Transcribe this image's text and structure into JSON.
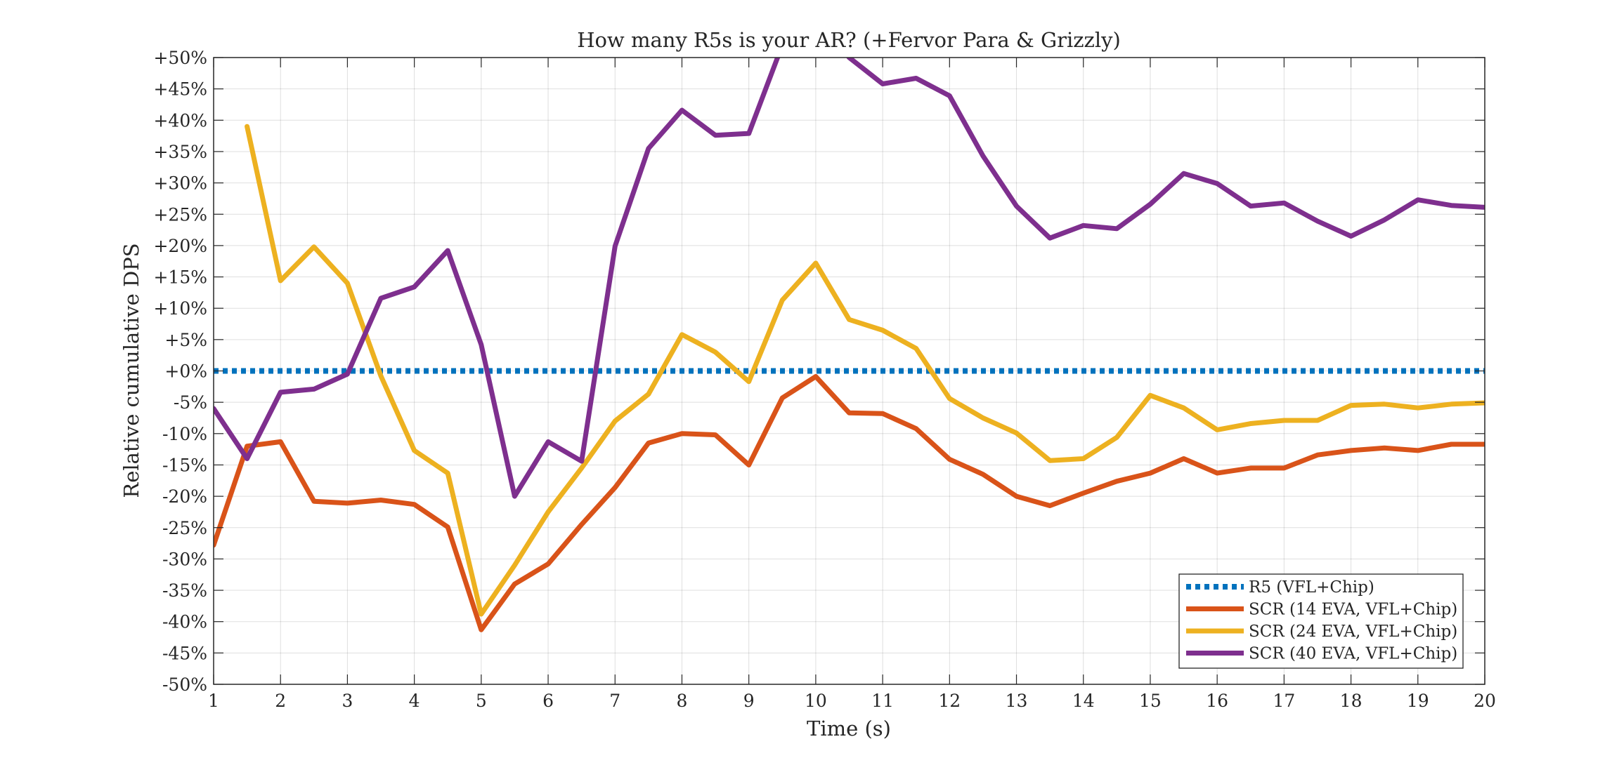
{
  "chart_data": {
    "type": "line",
    "title": "How many R5s is your AR? (+Fervor Para & Grizzly)",
    "xlabel": "Time (s)",
    "ylabel": "Relative cumulative DPS",
    "xlim": [
      1,
      20
    ],
    "ylim": [
      -50,
      50
    ],
    "x_ticks": [
      "1",
      "2",
      "3",
      "4",
      "5",
      "6",
      "7",
      "8",
      "9",
      "10",
      "11",
      "12",
      "13",
      "14",
      "15",
      "16",
      "17",
      "18",
      "19",
      "20"
    ],
    "y_ticks": [
      "+50%",
      "+45%",
      "+40%",
      "+35%",
      "+30%",
      "+25%",
      "+20%",
      "+15%",
      "+10%",
      "+5%",
      "+0%",
      "-5%",
      "-10%",
      "-15%",
      "-20%",
      "-25%",
      "-30%",
      "-35%",
      "-40%",
      "-45%",
      "-50%"
    ],
    "grid": true,
    "legend_position": "bottom-right",
    "x": [
      1,
      1.5,
      2,
      2.5,
      3,
      3.5,
      4,
      4.5,
      5,
      5.5,
      6,
      6.5,
      7,
      7.5,
      8,
      8.5,
      9,
      9.5,
      10,
      10.5,
      11,
      11.5,
      12,
      12.5,
      13,
      13.5,
      14,
      14.5,
      15,
      15.5,
      16,
      16.5,
      17,
      17.5,
      18,
      18.5,
      19,
      19.5,
      20
    ],
    "series": [
      {
        "name": "R5 (VFL+Chip)",
        "color": "#0072BD",
        "style": "dotted",
        "values": [
          0,
          0,
          0,
          0,
          0,
          0,
          0,
          0,
          0,
          0,
          0,
          0,
          0,
          0,
          0,
          0,
          0,
          0,
          0,
          0,
          0,
          0,
          0,
          0,
          0,
          0,
          0,
          0,
          0,
          0,
          0,
          0,
          0,
          0,
          0,
          0,
          0,
          0,
          0
        ]
      },
      {
        "name": "SCR (14 EVA, VFL+Chip)",
        "color": "#D95319",
        "style": "solid",
        "values": [
          -27.8,
          -12,
          -11.3,
          -20.8,
          -21.1,
          -20.6,
          -21.3,
          -24.9,
          -41.3,
          -34,
          -30.8,
          -24.5,
          -18.6,
          -11.5,
          -10,
          -10.2,
          -15,
          -4.3,
          -0.9,
          -6.7,
          -6.8,
          -9.2,
          -14.1,
          -16.5,
          -20,
          -21.5,
          -19.5,
          -17.6,
          -16.3,
          -14,
          -16.3,
          -15.5,
          -15.5,
          -13.4,
          -12.7,
          -12.3,
          -12.7,
          -11.7,
          -11.7
        ]
      },
      {
        "name": "SCR (24 EVA, VFL+Chip)",
        "color": "#EDB120",
        "style": "solid",
        "values": [
          null,
          39,
          14.4,
          19.8,
          14,
          -0.8,
          -12.7,
          -16.3,
          -38.8,
          -31,
          -22.5,
          -15.5,
          -8,
          -3.7,
          5.8,
          3,
          -1.7,
          11.3,
          17.2,
          8.2,
          6.5,
          3.6,
          -4.4,
          -7.5,
          -9.9,
          -14.3,
          -14,
          -10.6,
          -3.9,
          -5.9,
          -9.4,
          -8.4,
          -7.9,
          -7.9,
          -5.5,
          -5.3,
          -5.9,
          -5.3,
          -5.1
        ]
      },
      {
        "name": "SCR (40 EVA, VFL+Chip)",
        "color": "#7E2F8E",
        "style": "solid",
        "values": [
          -6,
          -14,
          -3.4,
          -2.9,
          -0.5,
          11.6,
          13.4,
          19.2,
          4.2,
          -20,
          -11.3,
          -14.4,
          19.9,
          35.5,
          41.6,
          37.6,
          37.9,
          52,
          57,
          50,
          45.8,
          46.7,
          43.9,
          34.3,
          26.3,
          21.2,
          23.2,
          22.7,
          26.6,
          31.5,
          29.9,
          26.3,
          26.8,
          23.9,
          21.5,
          24.1,
          27.3,
          26.4,
          26.1
        ]
      }
    ]
  }
}
